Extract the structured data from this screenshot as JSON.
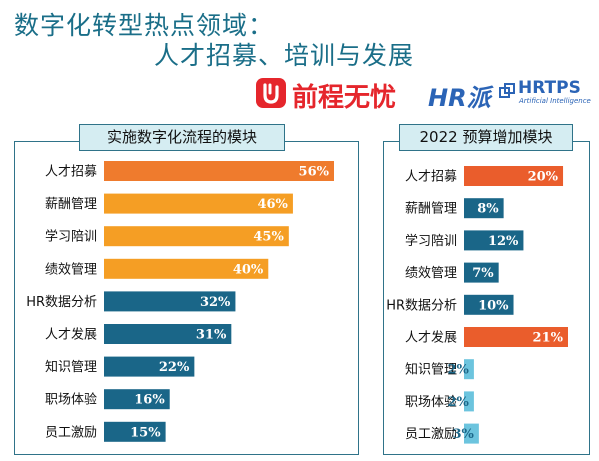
{
  "header": {
    "title_line1": "数字化转型热点领域：",
    "title_line2": "人才招募、培训与发展"
  },
  "logos": {
    "brand_cn": "前程无忧",
    "brand_hr": "HR派",
    "hrtps": "HRTPS",
    "hrtps_sub": "Artificial Intelligence",
    "brand_color": "#e5262c",
    "hr_color": "#2b64b6"
  },
  "chart_data": [
    {
      "type": "bar",
      "orientation": "horizontal",
      "title": "实施数字化流程的模块",
      "categories": [
        "人才招募",
        "薪酬管理",
        "学习陪训",
        "绩效管理",
        "HR数据分析",
        "人才发展",
        "知识管理",
        "职场体验",
        "员工激励"
      ],
      "values": [
        56,
        46,
        45,
        40,
        32,
        31,
        22,
        16,
        15
      ],
      "labels": [
        "56%",
        "46%",
        "45%",
        "40%",
        "32%",
        "31%",
        "22%",
        "16%",
        "15%"
      ],
      "colors": [
        "#ef7b2d",
        "#f59e24",
        "#f59e24",
        "#f59e24",
        "#1a6688",
        "#1a6688",
        "#1a6688",
        "#1a6688",
        "#1a6688"
      ],
      "label_colors": [
        "#ffffff",
        "#ffffff",
        "#ffffff",
        "#ffffff",
        "#ffffff",
        "#ffffff",
        "#ffffff",
        "#ffffff",
        "#ffffff"
      ],
      "xlim": [
        0,
        60
      ]
    },
    {
      "type": "bar",
      "orientation": "horizontal",
      "title": "2022 预算增加模块",
      "categories": [
        "人才招募",
        "薪酬管理",
        "学习陪训",
        "绩效管理",
        "HR数据分析",
        "人才发展",
        "知识管理",
        "职场体验",
        "员工激励"
      ],
      "values": [
        20,
        8,
        12,
        7,
        10,
        21,
        2,
        2,
        3
      ],
      "labels": [
        "20%",
        "8%",
        "12%",
        "7%",
        "10%",
        "21%",
        "2%",
        "2%",
        "3%"
      ],
      "colors": [
        "#ea5d2c",
        "#1a6688",
        "#1a6688",
        "#1a6688",
        "#1a6688",
        "#ea5d2c",
        "#6cc4de",
        "#6cc4de",
        "#6cc4de"
      ],
      "label_colors": [
        "#ffffff",
        "#ffffff",
        "#ffffff",
        "#ffffff",
        "#ffffff",
        "#ffffff",
        "#1a6688",
        "#1a6688",
        "#1a6688"
      ],
      "xlim": [
        0,
        22
      ]
    }
  ]
}
